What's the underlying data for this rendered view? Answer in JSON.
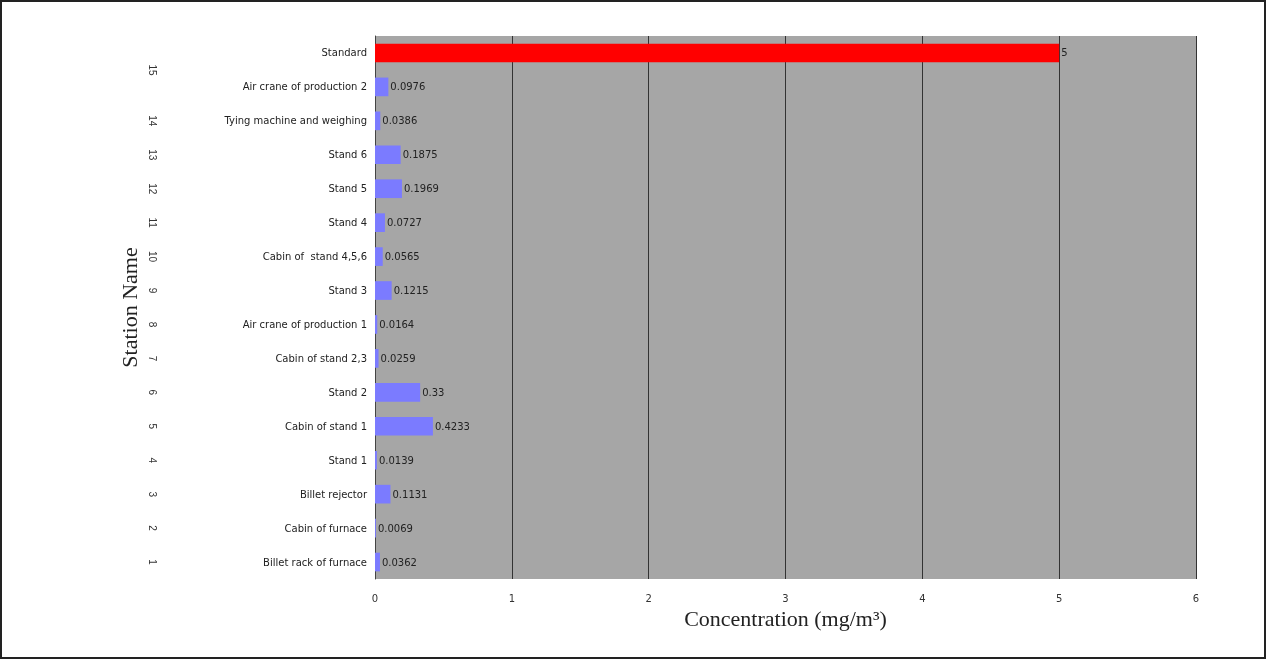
{
  "chart_data": {
    "type": "bar",
    "orientation": "horizontal",
    "xlabel": "Concentration (mg/m³)",
    "ylabel": "Station Name",
    "categories": [
      "Standard",
      "Air crane of production 2",
      "Tying machine and weighing",
      "Stand 6",
      "Stand 5",
      "Stand 4",
      "Cabin of  stand 4,5,6",
      "Stand 3",
      "Air crane of production 1",
      "Cabin of stand 2,3",
      "Stand 2",
      "Cabin of stand 1",
      "Stand 1",
      "Billet rejector",
      "Cabin of furnace",
      "Billet rack of furnace"
    ],
    "values": [
      5,
      0.0976,
      0.0386,
      0.1875,
      0.1969,
      0.0727,
      0.0565,
      0.1215,
      0.0164,
      0.0259,
      0.33,
      0.4233,
      0.0139,
      0.1131,
      0.0069,
      0.0362
    ],
    "colors": [
      "#ff0000",
      "#7b7bff",
      "#7b7bff",
      "#7b7bff",
      "#7b7bff",
      "#7b7bff",
      "#7b7bff",
      "#7b7bff",
      "#7b7bff",
      "#7b7bff",
      "#7b7bff",
      "#7b7bff",
      "#7b7bff",
      "#7b7bff",
      "#7b7bff",
      "#7b7bff"
    ],
    "xlim": [
      0,
      6
    ],
    "xticks": [
      0,
      1,
      2,
      3,
      4,
      5,
      6
    ],
    "grid": "x",
    "data_labels": true,
    "annotations": [
      "1",
      "2",
      "3",
      "4",
      "5",
      "6",
      "7",
      "8",
      "9",
      "10",
      "11",
      "12",
      "13",
      "14",
      "15"
    ]
  }
}
